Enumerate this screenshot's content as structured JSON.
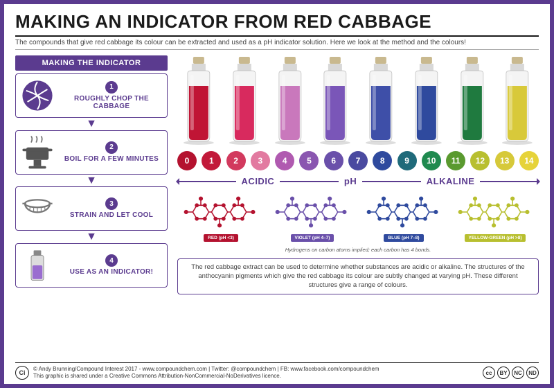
{
  "title": "MAKING AN INDICATOR FROM RED CABBAGE",
  "subtitle": "The compounds that give red cabbage its colour can be extracted and used as a pH indicator solution. Here we look at the method and the colours!",
  "panel_header": "MAKING THE INDICATOR",
  "accent_color": "#5b3b8f",
  "steps": [
    {
      "num": "1",
      "label": "ROUGHLY CHOP THE CABBAGE"
    },
    {
      "num": "2",
      "label": "BOIL FOR A FEW MINUTES"
    },
    {
      "num": "3",
      "label": "STRAIN AND LET COOL"
    },
    {
      "num": "4",
      "label": "USE AS AN INDICATOR!"
    }
  ],
  "bottle_colors": [
    "#c01535",
    "#d82a5e",
    "#c978bc",
    "#7a56b8",
    "#3e4fa8",
    "#2f4a9e",
    "#1f7a3f",
    "#d8c93a"
  ],
  "ph_scale": [
    {
      "v": "0",
      "c": "#b4122f"
    },
    {
      "v": "1",
      "c": "#c21a3a"
    },
    {
      "v": "2",
      "c": "#d23a5e"
    },
    {
      "v": "3",
      "c": "#e27aa0"
    },
    {
      "v": "4",
      "c": "#b05ab0"
    },
    {
      "v": "5",
      "c": "#8a56b0"
    },
    {
      "v": "6",
      "c": "#6a50aa"
    },
    {
      "v": "7",
      "c": "#4a4aa0"
    },
    {
      "v": "8",
      "c": "#2f4a9e"
    },
    {
      "v": "9",
      "c": "#1f6a7a"
    },
    {
      "v": "10",
      "c": "#1f8a4f"
    },
    {
      "v": "11",
      "c": "#5a9a2f"
    },
    {
      "v": "12",
      "c": "#b8bf2f"
    },
    {
      "v": "13",
      "c": "#d6c93a"
    },
    {
      "v": "14",
      "c": "#e6d33a"
    }
  ],
  "axis": {
    "acidic": "ACIDIC",
    "center": "pH",
    "alkaline": "ALKALINE"
  },
  "molecules": [
    {
      "label": "RED (pH <3)",
      "color": "#b4122f"
    },
    {
      "label": "VIOLET (pH 4–7)",
      "color": "#6a50aa"
    },
    {
      "label": "BLUE (pH 7–8)",
      "color": "#2f4a9e"
    },
    {
      "label": "YELLOW-GREEN (pH >8)",
      "color": "#b8bf2f"
    }
  ],
  "mol_note": "Hydrogens on carbon atoms implied; each carbon has 4 bonds.",
  "explain": "The red cabbage extract can be used to determine whether substances are acidic or alkaline. The structures of the anthocyanin pigments which give the red cabbage its colour are subtly changed at varying pH. These different structures give a range of colours.",
  "footer": {
    "logo": "Ci",
    "line1": "© Andy Brunning/Compound Interest 2017 - www.compoundchem.com | Twitter: @compoundchem | FB: www.facebook.com/compoundchem",
    "line2": "This graphic is shared under a Creative Commons Attribution-NonCommercial-NoDerivatives licence.",
    "cc": [
      "cc",
      "BY",
      "NC",
      "ND"
    ]
  }
}
